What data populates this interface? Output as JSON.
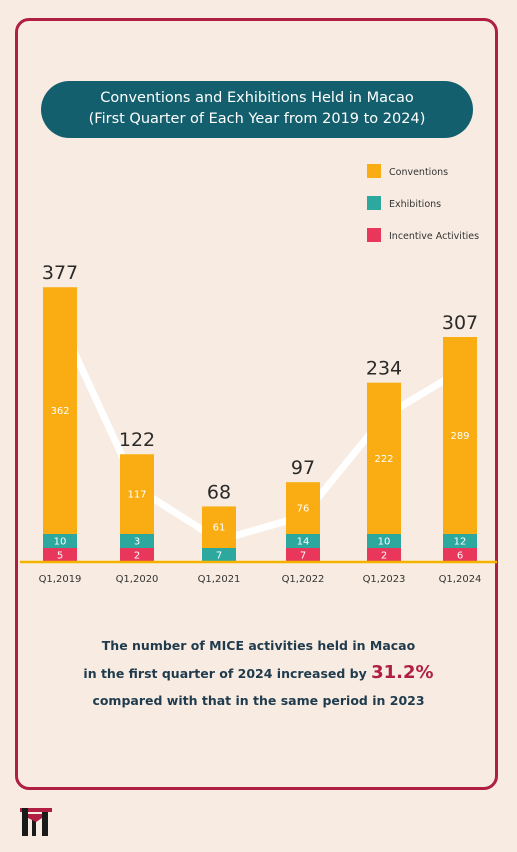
{
  "title_line1": "Conventions and Exhibitions Held in Macao",
  "title_line2": "(First Quarter of Each Year from 2019 to 2024)",
  "caption": {
    "line1": "The number of MICE activities held in Macao",
    "line2_pre": "in the first quarter of 2024 increased by ",
    "highlight": "31.2%",
    "line3": "compared with that in the same period in 2023"
  },
  "colors": {
    "conventions": "#f9ad12",
    "exhibitions": "#2ca89f",
    "incentive": "#e8375a",
    "accent": "#b01e44",
    "title_bg": "#145f6e",
    "baseline": "#f5b300",
    "trend": "#ffffff"
  },
  "chart_data": {
    "type": "bar",
    "stacked": true,
    "categories": [
      "Q1,2019",
      "Q1,2020",
      "Q1,2021",
      "Q1,2022",
      "Q1,2023",
      "Q1,2024"
    ],
    "series": [
      {
        "name": "Incentive Activities",
        "values": [
          5,
          2,
          0,
          7,
          2,
          6
        ]
      },
      {
        "name": "Exhibitions",
        "values": [
          10,
          3,
          7,
          14,
          10,
          12
        ]
      },
      {
        "name": "Conventions",
        "values": [
          362,
          117,
          61,
          76,
          222,
          289
        ]
      }
    ],
    "totals": [
      377,
      122,
      68,
      97,
      234,
      307
    ],
    "legend_order": [
      "Conventions",
      "Exhibitions",
      "Incentive Activities"
    ],
    "legend_position": "top-right",
    "grid": false,
    "trend_line": true
  }
}
